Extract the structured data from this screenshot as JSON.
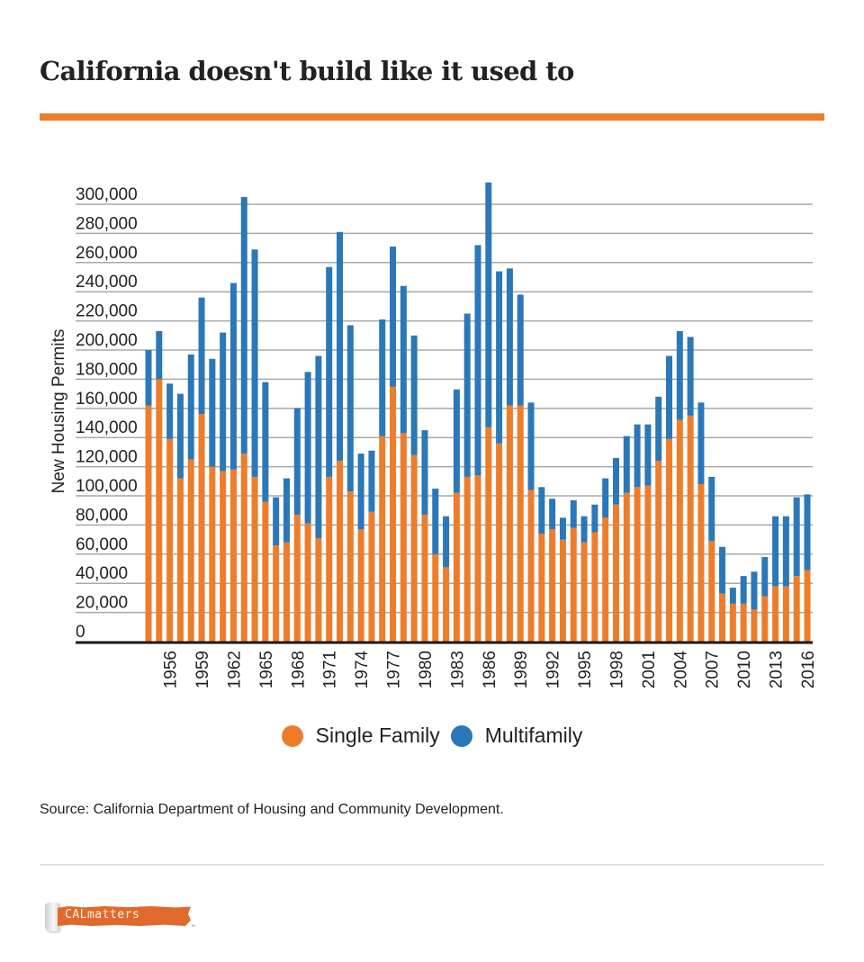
{
  "header": {
    "title": "California doesn't build like it used to",
    "accent_color": "#ee7d2b"
  },
  "legend": [
    {
      "label": "Single Family",
      "color": "#ee7d2b"
    },
    {
      "label": "Multifamily",
      "color": "#2b78b8"
    }
  ],
  "footer": {
    "source": "Source: California Department of Housing and Community Development.",
    "logo_text": "CALmatters",
    "logo_tm": "™"
  },
  "chart_data": {
    "type": "bar",
    "stacked": true,
    "title": "California doesn't build like it used to",
    "xlabel": "",
    "ylabel": "New Housing Permits",
    "ylim": [
      0,
      300000
    ],
    "y_ticks": [
      0,
      20000,
      40000,
      60000,
      80000,
      100000,
      120000,
      140000,
      160000,
      180000,
      200000,
      220000,
      240000,
      260000,
      280000,
      300000
    ],
    "y_tick_labels": [
      "0",
      "20,000",
      "40,000",
      "60,000",
      "80,000",
      "100,000",
      "120,000",
      "140,000",
      "160,000",
      "180,000",
      "200,000",
      "220,000",
      "240,000",
      "260,000",
      "280,000",
      "300,000"
    ],
    "x_tick_labels": [
      "1956",
      "1959",
      "1962",
      "1965",
      "1968",
      "1971",
      "1974",
      "1977",
      "1980",
      "1983",
      "1986",
      "1989",
      "1992",
      "1995",
      "1998",
      "2001",
      "2004",
      "2007",
      "2010",
      "2013",
      "2016"
    ],
    "grid": true,
    "legend_position": "bottom-center",
    "categories": [
      1954,
      1955,
      1956,
      1957,
      1958,
      1959,
      1960,
      1961,
      1962,
      1963,
      1964,
      1965,
      1966,
      1967,
      1968,
      1969,
      1970,
      1971,
      1972,
      1973,
      1974,
      1975,
      1976,
      1977,
      1978,
      1979,
      1980,
      1981,
      1982,
      1983,
      1984,
      1985,
      1986,
      1987,
      1988,
      1989,
      1990,
      1991,
      1992,
      1993,
      1994,
      1995,
      1996,
      1997,
      1998,
      1999,
      2000,
      2001,
      2002,
      2003,
      2004,
      2005,
      2006,
      2007,
      2008,
      2009,
      2010,
      2011,
      2012,
      2013,
      2014,
      2015,
      2016
    ],
    "series": [
      {
        "name": "Single Family",
        "color": "#ee7d2b",
        "values": [
          162000,
          180000,
          139000,
          112000,
          125000,
          156000,
          120000,
          117000,
          118000,
          129000,
          113000,
          96000,
          66000,
          68000,
          87000,
          81000,
          71000,
          113000,
          124000,
          103000,
          77000,
          89000,
          141000,
          175000,
          143000,
          128000,
          87000,
          60000,
          51000,
          102000,
          113000,
          114000,
          147000,
          136000,
          162000,
          162000,
          104000,
          74000,
          77000,
          70000,
          78000,
          68000,
          75000,
          85000,
          94000,
          102000,
          106000,
          107000,
          124000,
          139000,
          152000,
          155000,
          108000,
          69000,
          33000,
          26000,
          26000,
          22000,
          31000,
          38000,
          38000,
          45000,
          49000
        ]
      },
      {
        "name": "Multifamily",
        "color": "#2b78b8",
        "values": [
          38000,
          33000,
          38000,
          58000,
          72000,
          80000,
          74000,
          95000,
          128000,
          176000,
          156000,
          82000,
          33000,
          44000,
          73000,
          104000,
          125000,
          144000,
          157000,
          114000,
          52000,
          42000,
          80000,
          96000,
          101000,
          82000,
          58000,
          45000,
          35000,
          71000,
          112000,
          158000,
          168000,
          118000,
          94000,
          76000,
          60000,
          32000,
          21000,
          15000,
          19000,
          18000,
          19000,
          27000,
          32000,
          39000,
          43000,
          42000,
          44000,
          57000,
          61000,
          54000,
          56000,
          44000,
          32000,
          11000,
          19000,
          26000,
          27000,
          48000,
          48000,
          54000,
          52000
        ]
      }
    ]
  }
}
